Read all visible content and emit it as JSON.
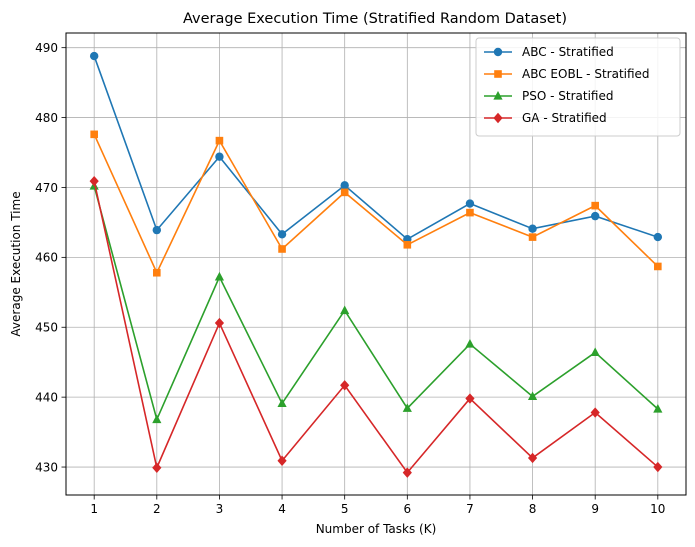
{
  "chart_data": {
    "type": "line",
    "title": "Average Execution Time (Stratified Random Dataset)",
    "xlabel": "Number of Tasks (K)",
    "ylabel": "Average Execution Time",
    "x": [
      1,
      2,
      3,
      4,
      5,
      6,
      7,
      8,
      9,
      10
    ],
    "xticks": [
      "1",
      "2",
      "3",
      "4",
      "5",
      "6",
      "7",
      "8",
      "9",
      "10"
    ],
    "yticks": [
      "430",
      "440",
      "450",
      "460",
      "470",
      "480",
      "490"
    ],
    "xlim": [
      0.55,
      10.45
    ],
    "ylim": [
      426.0,
      492.1
    ],
    "grid": true,
    "legend_position": "top-right",
    "series": [
      {
        "name": "ABC - Stratified",
        "color": "#1f77b4",
        "marker": "circle",
        "values": [
          488.8,
          463.9,
          474.4,
          463.3,
          470.3,
          462.6,
          467.7,
          464.1,
          465.9,
          462.9
        ]
      },
      {
        "name": "ABC EOBL - Stratified",
        "color": "#ff7f0e",
        "marker": "square",
        "values": [
          477.6,
          457.8,
          476.7,
          461.2,
          469.3,
          461.8,
          466.4,
          462.9,
          467.4,
          458.7
        ]
      },
      {
        "name": "PSO - Stratified",
        "color": "#2ca02c",
        "marker": "triangle",
        "values": [
          470.2,
          436.8,
          457.2,
          439.1,
          452.4,
          438.4,
          447.6,
          440.1,
          446.4,
          438.3
        ]
      },
      {
        "name": "GA - Stratified",
        "color": "#d62728",
        "marker": "diamond",
        "values": [
          470.9,
          429.9,
          450.6,
          430.9,
          441.7,
          429.2,
          439.8,
          431.3,
          437.8,
          430.0
        ]
      }
    ]
  }
}
